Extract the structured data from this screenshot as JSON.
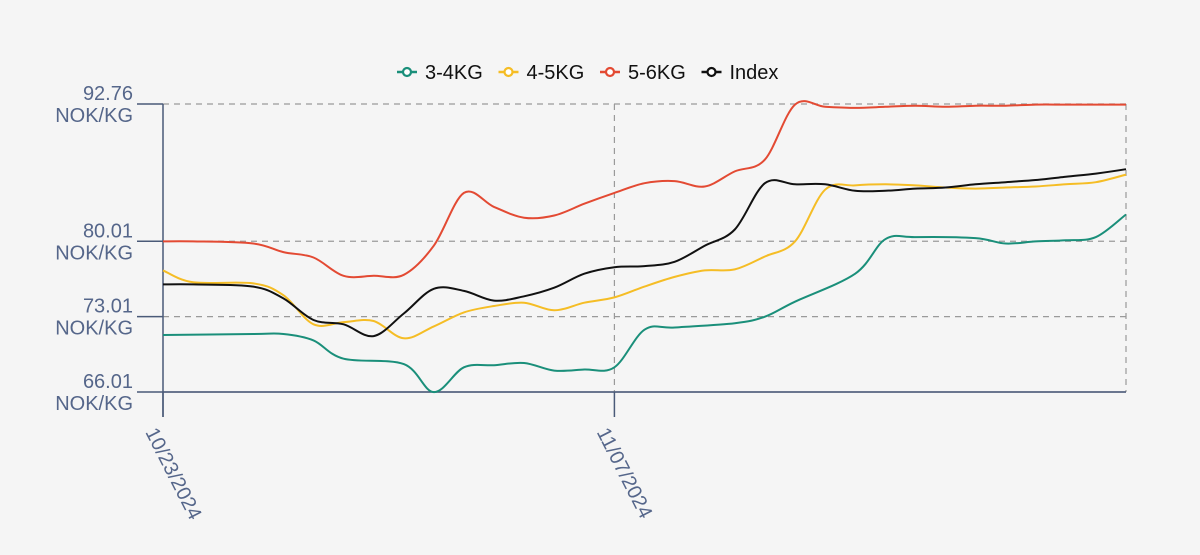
{
  "chart_data": {
    "type": "line",
    "title": "",
    "xlabel": "",
    "ylabel": "",
    "y_unit": "NOK/KG",
    "ylim": [
      66.01,
      92.76
    ],
    "yticks": [
      66.01,
      73.01,
      80.01,
      92.76
    ],
    "ytick_labels": [
      [
        "66.01",
        "NOK/KG"
      ],
      [
        "73.01",
        "NOK/KG"
      ],
      [
        "80.01",
        "NOK/KG"
      ],
      [
        "92.76",
        "NOK/KG"
      ]
    ],
    "xticks": [
      0,
      15
    ],
    "xtick_labels": [
      "10/23/2024",
      "11/07/2024"
    ],
    "x_day_range": [
      0,
      32
    ],
    "grid": true,
    "legend_position": "top-center",
    "series": [
      {
        "name": "3-4KG",
        "color": "#1a8f7a",
        "x": [
          0,
          3,
          4,
          5,
          6,
          8,
          9,
          10,
          11,
          12,
          13,
          14,
          15,
          16,
          17,
          19,
          20,
          21,
          23,
          24,
          25,
          27,
          28,
          29,
          30,
          31,
          32
        ],
        "values": [
          71.3,
          71.4,
          71.4,
          70.8,
          69.1,
          68.6,
          66.0,
          68.3,
          68.5,
          68.7,
          68.0,
          68.1,
          68.3,
          71.8,
          72.0,
          72.4,
          73.0,
          74.4,
          77.0,
          80.2,
          80.4,
          80.3,
          79.8,
          80.0,
          80.1,
          80.4,
          82.5
        ]
      },
      {
        "name": "4-5KG",
        "color": "#f5bd25",
        "x": [
          0,
          1,
          3,
          4,
          5,
          6,
          7,
          8,
          9,
          10,
          11,
          12,
          13,
          14,
          15,
          16,
          17,
          18,
          19,
          20,
          21,
          22,
          23,
          24,
          25,
          26,
          27,
          28,
          29,
          30,
          31,
          32
        ],
        "values": [
          77.3,
          76.2,
          76.1,
          75.0,
          72.3,
          72.5,
          72.6,
          71.0,
          72.1,
          73.4,
          74.0,
          74.3,
          73.6,
          74.3,
          74.8,
          75.8,
          76.7,
          77.3,
          77.4,
          78.6,
          80.0,
          84.8,
          85.2,
          85.3,
          85.2,
          85.0,
          84.9,
          85.0,
          85.1,
          85.3,
          85.5,
          86.2
        ]
      },
      {
        "name": "5-6KG",
        "color": "#e34a33",
        "x": [
          0,
          1,
          3,
          4,
          5,
          6,
          7,
          8,
          9,
          10,
          11,
          12,
          13,
          14,
          15,
          16,
          17,
          18,
          19,
          20,
          21,
          22,
          23,
          24,
          25,
          26,
          27,
          28,
          29,
          30,
          31,
          32
        ],
        "values": [
          80.0,
          80.0,
          79.8,
          79.0,
          78.5,
          76.8,
          76.8,
          76.9,
          79.6,
          84.5,
          83.2,
          82.2,
          82.4,
          83.5,
          84.5,
          85.4,
          85.6,
          85.1,
          86.5,
          87.6,
          92.7,
          92.5,
          92.4,
          92.5,
          92.6,
          92.5,
          92.6,
          92.6,
          92.7,
          92.7,
          92.7,
          92.7
        ]
      },
      {
        "name": "Index",
        "color": "#111111",
        "x": [
          0,
          1,
          3,
          4,
          5,
          6,
          7,
          8,
          9,
          10,
          11,
          12,
          13,
          14,
          15,
          16,
          17,
          18,
          19,
          20,
          21,
          22,
          23,
          24,
          25,
          26,
          27,
          28,
          29,
          30,
          31,
          32
        ],
        "values": [
          76.0,
          76.0,
          75.8,
          74.7,
          72.7,
          72.3,
          71.2,
          73.3,
          75.6,
          75.4,
          74.5,
          74.9,
          75.7,
          77.0,
          77.6,
          77.7,
          78.1,
          79.6,
          81.1,
          85.4,
          85.3,
          85.3,
          84.7,
          84.7,
          84.9,
          85.0,
          85.3,
          85.5,
          85.7,
          86.0,
          86.3,
          86.7
        ]
      }
    ]
  }
}
